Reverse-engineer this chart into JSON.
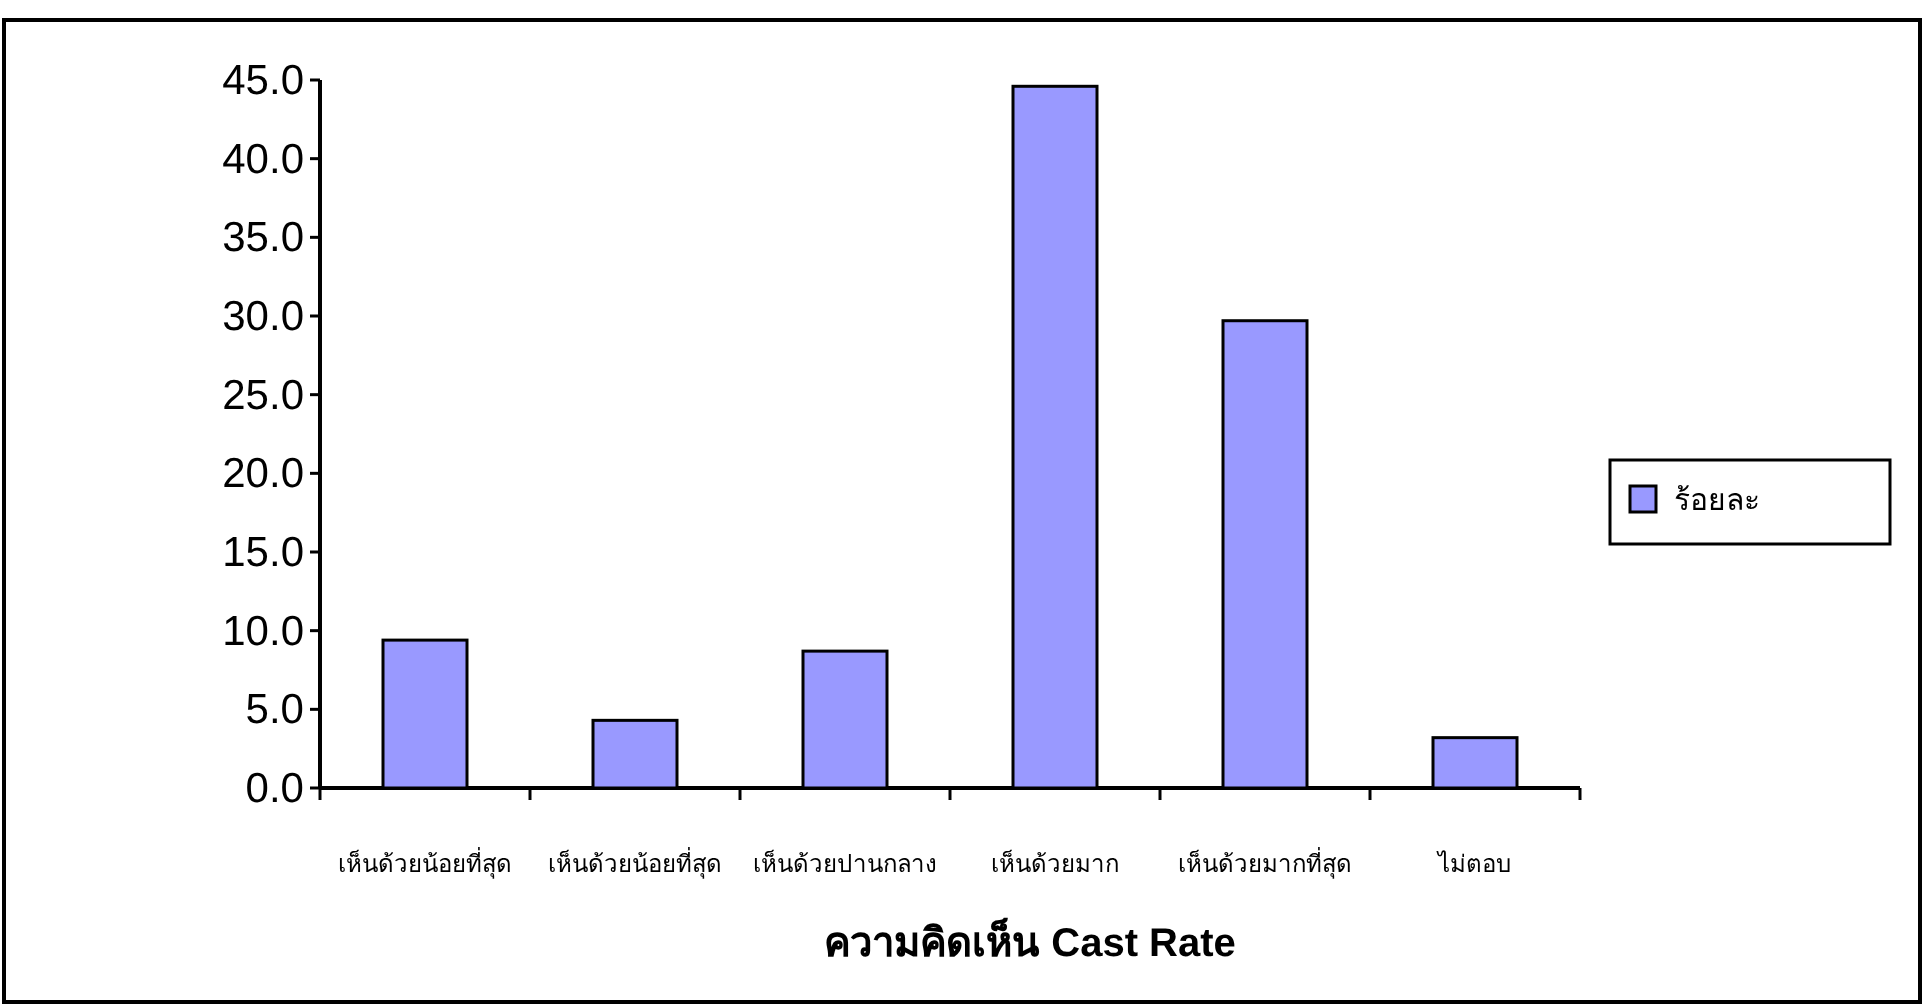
{
  "chart_data": {
    "type": "bar",
    "xlabel": "ความคิดเห็น Cast Rate",
    "categories": [
      "เห็นด้วยน้อยที่สุด",
      "เห็นด้วยน้อยที่สุด",
      "เห็นด้วยปานกลาง",
      "เห็นด้วยมาก",
      "เห็นด้วยมากที่สุด",
      "ไม่ตอบ"
    ],
    "series": [
      {
        "name": "ร้อยละ",
        "color": "#9999ff",
        "values": [
          9.4,
          4.3,
          8.7,
          44.6,
          29.7,
          3.2
        ]
      }
    ],
    "ylim": [
      0,
      45
    ],
    "yticks": [
      {
        "value": 0,
        "label": "0.0"
      },
      {
        "value": 5,
        "label": "5.0"
      },
      {
        "value": 10,
        "label": "10.0"
      },
      {
        "value": 15,
        "label": "15.0"
      },
      {
        "value": 20,
        "label": "20.0"
      },
      {
        "value": 25,
        "label": "25.0"
      },
      {
        "value": 30,
        "label": "30.0"
      },
      {
        "value": 35,
        "label": "35.0"
      },
      {
        "value": 40,
        "label": "40.0"
      },
      {
        "value": 45,
        "label": "45.0"
      }
    ],
    "legend": "right",
    "grid": false
  }
}
